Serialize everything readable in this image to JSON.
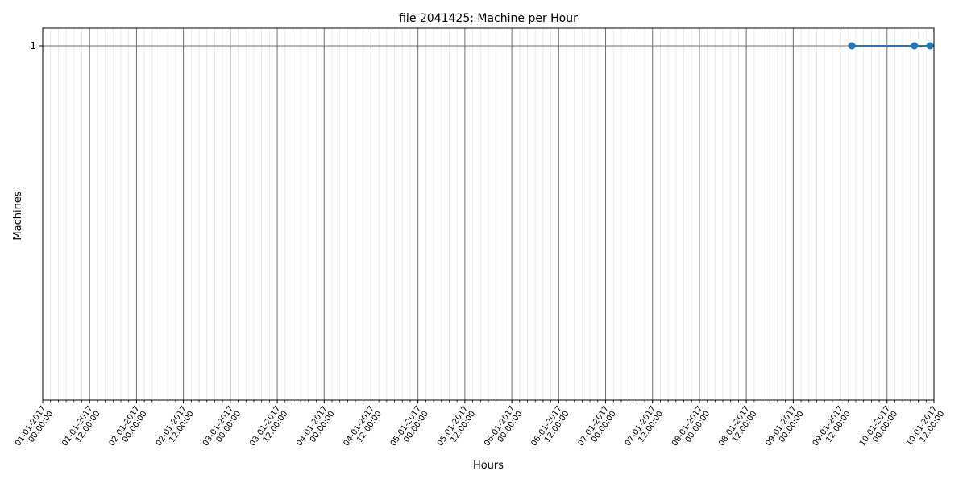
{
  "chart_data": {
    "type": "line",
    "title": "file 2041425: Machine per Hour",
    "xlabel": "Hours",
    "ylabel": "Machines",
    "xlim": [
      "01-01-2017 00:00:00",
      "10-01-2017 12:00:00"
    ],
    "ylim": [
      0,
      1.05
    ],
    "x_ticks": [
      "01-01-2017 00:00:00",
      "01-01-2017 12:00:00",
      "02-01-2017 00:00:00",
      "02-01-2017 12:00:00",
      "03-01-2017 00:00:00",
      "03-01-2017 12:00:00",
      "04-01-2017 00:00:00",
      "04-01-2017 12:00:00",
      "05-01-2017 00:00:00",
      "05-01-2017 12:00:00",
      "06-01-2017 00:00:00",
      "06-01-2017 12:00:00",
      "07-01-2017 00:00:00",
      "07-01-2017 12:00:00",
      "08-01-2017 00:00:00",
      "08-01-2017 12:00:00",
      "09-01-2017 00:00:00",
      "09-01-2017 12:00:00",
      "10-01-2017 00:00:00",
      "10-01-2017 12:00:00"
    ],
    "y_ticks": [
      "1"
    ],
    "grid": true,
    "series": [
      {
        "color": "#1f77b4",
        "x": [
          "09-01-2017 15:00:00",
          "10-01-2017 07:00:00",
          "10-01-2017 11:00:00"
        ],
        "values": [
          1,
          1,
          1
        ]
      }
    ]
  }
}
